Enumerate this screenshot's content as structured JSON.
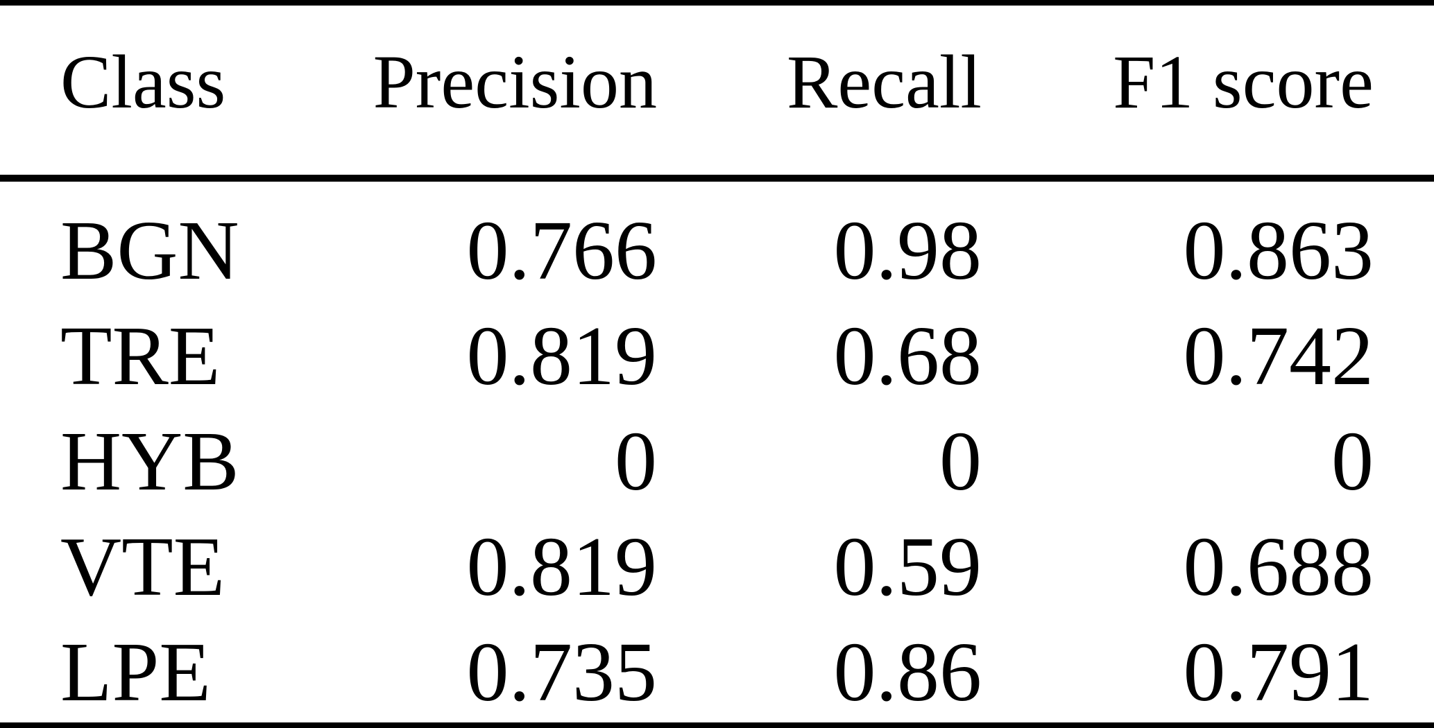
{
  "figure": {
    "type": "table",
    "columns": [
      "Class",
      "Precision",
      "Recall",
      "F1 score"
    ],
    "rows": [
      [
        "BGN",
        "0.766",
        "0.98",
        "0.863"
      ],
      [
        "TRE",
        "0.819",
        "0.68",
        "0.742"
      ],
      [
        "HYB",
        "0",
        "0",
        "0"
      ],
      [
        "VTE",
        "0.819",
        "0.59",
        "0.688"
      ],
      [
        "LPE",
        "0.735",
        "0.86",
        "0.791"
      ]
    ],
    "text_color": "#000000",
    "rule_color": "#000000",
    "background_color": "#ffffff"
  },
  "chart_data": {
    "type": "table",
    "columns": [
      "Class",
      "Precision",
      "Recall",
      "F1 score"
    ],
    "rows": [
      {
        "class": "BGN",
        "precision": 0.766,
        "recall": 0.98,
        "f1_score": 0.863
      },
      {
        "class": "TRE",
        "precision": 0.819,
        "recall": 0.68,
        "f1_score": 0.742
      },
      {
        "class": "HYB",
        "precision": 0,
        "recall": 0,
        "f1_score": 0
      },
      {
        "class": "VTE",
        "precision": 0.819,
        "recall": 0.59,
        "f1_score": 0.688
      },
      {
        "class": "LPE",
        "precision": 0.735,
        "recall": 0.86,
        "f1_score": 0.791
      }
    ]
  }
}
